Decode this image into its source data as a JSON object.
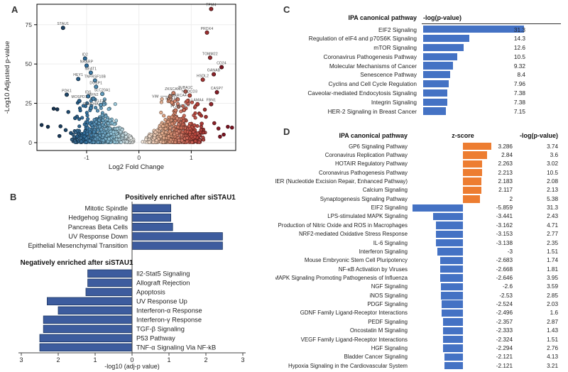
{
  "panels": {
    "a": "A",
    "b": "B",
    "c": "C",
    "d": "D"
  },
  "chart_data": [
    {
      "id": "A",
      "type": "scatter",
      "kind": "volcano",
      "xlabel": "Log2 Fold Change",
      "ylabel": "-Log10 Adjusted p-value",
      "x_ticks": [
        -1,
        0,
        1
      ],
      "y_ticks": [
        0,
        25,
        50,
        75
      ],
      "xlim": [
        -1.95,
        1.85
      ],
      "ylim": [
        -5,
        88
      ],
      "grid": true,
      "color_stops": [
        [
          -1.6,
          "#16324f"
        ],
        [
          -1.0,
          "#2e6e9e"
        ],
        [
          -0.5,
          "#85bcd3"
        ],
        [
          -0.15,
          "#e2e6e4"
        ],
        [
          0,
          "#f6f1ea"
        ],
        [
          0.15,
          "#f3e2d2"
        ],
        [
          0.5,
          "#dd9f7d"
        ],
        [
          1.0,
          "#bf4a3e"
        ],
        [
          1.6,
          "#7a1220"
        ]
      ],
      "cloud": {
        "n": 1000,
        "mid_n": 70,
        "seed": 42
      },
      "extra_points": [
        [
          -1.86,
          11.2
        ],
        [
          -1.74,
          10.1
        ],
        [
          -1.63,
          21.6
        ],
        [
          -1.56,
          21.2
        ],
        [
          -1.5,
          10.4
        ],
        [
          -1.4,
          8.0
        ],
        [
          -1.52,
          4.2
        ],
        [
          -1.3,
          6.1
        ],
        [
          -1.22,
          15.6
        ],
        [
          -1.35,
          19.5
        ],
        [
          -1.18,
          4.0
        ],
        [
          1.7,
          10.1
        ],
        [
          1.78,
          9.6
        ],
        [
          1.52,
          9.0
        ],
        [
          1.44,
          12.4
        ],
        [
          1.62,
          5.1
        ],
        [
          1.28,
          16.4
        ],
        [
          1.2,
          12.1
        ],
        [
          1.16,
          18.2
        ],
        [
          1.26,
          21.0
        ],
        [
          1.55,
          3.8
        ]
      ],
      "labeled_genes": [
        {
          "name": "STAU1",
          "x": -1.45,
          "y": 73
        },
        {
          "name": "ID2",
          "x": -1.03,
          "y": 53.5
        },
        {
          "name": "NRARP",
          "x": -1.0,
          "y": 49
        },
        {
          "name": "NEAT1",
          "x": -0.92,
          "y": 44.5
        },
        {
          "name": "HEY1",
          "x": -1.16,
          "y": 40.5
        },
        {
          "name": "TNFRSF10B",
          "x": -0.84,
          "y": 39.5
        },
        {
          "name": "DUSP1",
          "x": -0.82,
          "y": 35.5
        },
        {
          "name": "PDK1",
          "x": -1.38,
          "y": 30.5
        },
        {
          "name": "IDS",
          "x": -0.97,
          "y": 29.5
        },
        {
          "name": "SLC20A1",
          "x": -0.7,
          "y": 31
        },
        {
          "name": "MFN2",
          "x": -0.87,
          "y": 28
        },
        {
          "name": "MOSPD1",
          "x": -1.14,
          "y": 26.5
        },
        {
          "name": "KLF10",
          "x": -0.73,
          "y": 24
        },
        {
          "name": "SAMD4A",
          "x": -0.92,
          "y": 22
        },
        {
          "name": "TPM4",
          "x": 1.38,
          "y": 85
        },
        {
          "name": "PRDX4",
          "x": 1.3,
          "y": 70
        },
        {
          "name": "TOMM22",
          "x": 1.36,
          "y": 54
        },
        {
          "name": "CD24",
          "x": 1.58,
          "y": 48
        },
        {
          "name": "GANAB",
          "x": 1.43,
          "y": 43.5
        },
        {
          "name": "HSDL2",
          "x": 1.22,
          "y": 40
        },
        {
          "name": "TUBA1C",
          "x": 0.89,
          "y": 32.5
        },
        {
          "name": "CASP7",
          "x": 1.49,
          "y": 32
        },
        {
          "name": "ZKSCAN1",
          "x": 0.66,
          "y": 31.5
        },
        {
          "name": "NUDCD3",
          "x": 0.97,
          "y": 30
        },
        {
          "name": "VIM",
          "x": 0.6,
          "y": 29.5,
          "lx": 0.38
        },
        {
          "name": "SMARCA4",
          "x": 0.74,
          "y": 27.5
        },
        {
          "name": "MYEF2",
          "x": 0.63,
          "y": 25.5
        },
        {
          "name": "LAMA4",
          "x": 1.12,
          "y": 24.5
        },
        {
          "name": "FBN1",
          "x": 1.38,
          "y": 24.5
        },
        {
          "name": "PLAU",
          "x": 0.7,
          "y": 20.5
        },
        {
          "name": "KCTD7",
          "x": 0.86,
          "y": 20.8
        }
      ]
    },
    {
      "id": "B",
      "type": "bar",
      "orientation": "diverging-horizontal",
      "pos_title": "Positively enriched after siSTAU1",
      "neg_title": "Negatively enriched after siSTAU1",
      "xlabel": "-log10 (adj-p value)",
      "x_ticks": [
        "3",
        "2",
        "1",
        "0",
        "1",
        "2",
        "3"
      ],
      "xlim": [
        -3,
        3
      ],
      "bar_color": "#3d5c9e",
      "bar_border": "#1f3864",
      "positive": [
        {
          "label": "Mitotic Spindle",
          "value": 1.05
        },
        {
          "label": "Hedgehog Signaling",
          "value": 1.05
        },
        {
          "label": "Pancreas Beta Cells",
          "value": 1.1
        },
        {
          "label": "UV Response Down",
          "value": 2.45
        },
        {
          "label": "Epithelial Mesenchymal Transition",
          "value": 2.45
        }
      ],
      "negative": [
        {
          "label": "Il2-Stat5 Signaling",
          "value": 1.2
        },
        {
          "label": "Allograft Rejection",
          "value": 1.2
        },
        {
          "label": "Apoptosis",
          "value": 1.25
        },
        {
          "label": "UV Response Up",
          "value": 2.3
        },
        {
          "label": "Interferon-α Response",
          "value": 2.0
        },
        {
          "label": "Interferon-γ Response",
          "value": 2.4
        },
        {
          "label": "TGF-β Signaling",
          "value": 2.4
        },
        {
          "label": "P53 Pathway",
          "value": 2.5
        },
        {
          "label": "TNF-α Signaling Via NF-kB",
          "value": 2.5
        }
      ]
    },
    {
      "id": "C",
      "type": "bar",
      "orientation": "horizontal",
      "header_pathway": "IPA canonical pathway",
      "header_value": "-log(p-value)",
      "bar_color": "#4472c4",
      "axis_max": 31.3,
      "rows": [
        {
          "label": "EIF2 Signaling",
          "value": "31.3"
        },
        {
          "label": "Regulation of eIF4 and p70S6K Signaling",
          "value": "14.3"
        },
        {
          "label": "mTOR Signaling",
          "value": "12.6"
        },
        {
          "label": "Coronavirus Pathogenesis Pathway",
          "value": "10.5"
        },
        {
          "label": "Molecular Mechanisms of Cancer",
          "value": "9.32"
        },
        {
          "label": "Senescence Pathway",
          "value": "8.4"
        },
        {
          "label": "Cyclins and Cell Cycle Regulation",
          "value": "7.96"
        },
        {
          "label": "Caveolar-mediated Endocytosis Signaling",
          "value": "7.38"
        },
        {
          "label": "Integrin Signaling",
          "value": "7.38"
        },
        {
          "label": "HER-2 Signaling in Breast Cancer",
          "value": "7.15"
        }
      ]
    },
    {
      "id": "D",
      "type": "bar",
      "orientation": "diverging-horizontal",
      "header_pathway": "IPA canonical pathway",
      "header_z": "z-score",
      "header_p": "-log(p-value)",
      "pos_color": "#ed7d31",
      "neg_color": "#4472c4",
      "rows": [
        {
          "label": "GP6 Signaling Pathway",
          "z": "3.286",
          "p": "3.74"
        },
        {
          "label": "Coronavirus Replication Pathway",
          "z": "2.84",
          "p": "3.6"
        },
        {
          "label": "HOTAIR Regulatory Pathway",
          "z": "2.263",
          "p": "3.02"
        },
        {
          "label": "Coronavirus Pathogenesis Pathway",
          "z": "2.213",
          "p": "10.5"
        },
        {
          "label": "NER (Nucleotide Excision Repair, Enhanced Pathway)",
          "z": "2.183",
          "p": "2.08"
        },
        {
          "label": "Calcium Signaling",
          "z": "2.117",
          "p": "2.13"
        },
        {
          "label": "Synaptogenesis Signaling Pathway",
          "z": "2",
          "p": "5.38"
        },
        {
          "label": "EIF2 Signaling",
          "z": "-5.859",
          "p": "31.3"
        },
        {
          "label": "LPS-stimulated MAPK Signaling",
          "z": "-3.441",
          "p": "2.43"
        },
        {
          "label": "Production of Nitric Oxide and ROS in Macrophages",
          "z": "-3.162",
          "p": "4.71"
        },
        {
          "label": "NRF2-mediated Oxidative Stress Response",
          "z": "-3.153",
          "p": "2.77"
        },
        {
          "label": "IL-6 Signaling",
          "z": "-3.138",
          "p": "2.35"
        },
        {
          "label": "Interferon Signaling",
          "z": "-3",
          "p": "1.51"
        },
        {
          "label": "Mouse Embryonic Stem Cell Pluripotency",
          "z": "-2.683",
          "p": "1.74"
        },
        {
          "label": "NF-κB Activation by Viruses",
          "z": "-2.668",
          "p": "1.81"
        },
        {
          "label": "MAPK Signaling Promoting Pathogenesis of Influenza",
          "z": "-2.646",
          "p": "3.95"
        },
        {
          "label": "NGF Signaling",
          "z": "-2.6",
          "p": "3.59"
        },
        {
          "label": "iNOS Signaling",
          "z": "-2.53",
          "p": "2.85"
        },
        {
          "label": "PDGF Signaling",
          "z": "-2.524",
          "p": "2.03"
        },
        {
          "label": "GDNF Family Ligand-Receptor Interactions",
          "z": "-2.496",
          "p": "1.6"
        },
        {
          "label": "PEDF Signaling",
          "z": "-2.357",
          "p": "2.87"
        },
        {
          "label": "Oncostatin M Signaling",
          "z": "-2.333",
          "p": "1.43"
        },
        {
          "label": "VEGF Family Ligand-Receptor Interactions",
          "z": "-2.324",
          "p": "1.51"
        },
        {
          "label": "HGF Signaling",
          "z": "-2.294",
          "p": "2.76"
        },
        {
          "label": "Bladder Cancer Signaling",
          "z": "-2.121",
          "p": "4.13"
        },
        {
          "label": "Hypoxia Signaling in the Cardiovascular System",
          "z": "-2.121",
          "p": "3.21"
        }
      ]
    }
  ]
}
